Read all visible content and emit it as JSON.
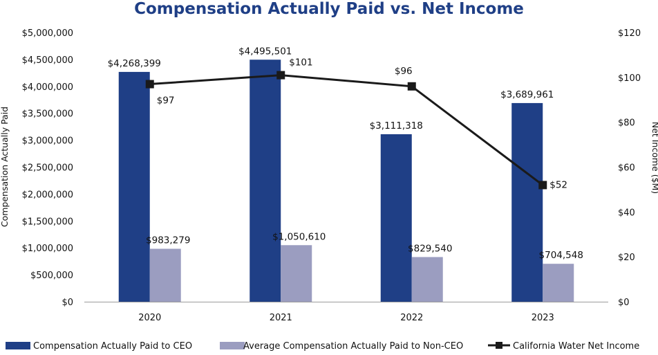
{
  "chart_data": {
    "type": "bar",
    "title": "Compensation Actually Paid vs. Net Income",
    "categories": [
      "2020",
      "2021",
      "2022",
      "2023"
    ],
    "ylabel": "Compensation Actually Paid",
    "y2label": "Net Income ($M)",
    "ylim": [
      0,
      5000000
    ],
    "y2lim": [
      0,
      120
    ],
    "yticks": [
      "$0",
      "$500,000",
      "$1,000,000",
      "$1,500,000",
      "$2,000,000",
      "$2,500,000",
      "$3,000,000",
      "$3,500,000",
      "$4,000,000",
      "$4,500,000",
      "$5,000,000"
    ],
    "y2ticks": [
      "$0",
      "$20",
      "$40",
      "$60",
      "$80",
      "$100",
      "$120"
    ],
    "series": [
      {
        "name": "Compensation Actually Paid to CEO",
        "kind": "bar",
        "axis": "left",
        "color": "#1F3F86",
        "values": [
          4268399,
          4495501,
          3111318,
          3689961
        ],
        "labels": [
          "$4,268,399",
          "$4,495,501",
          "$3,111,318",
          "$3,689,961"
        ]
      },
      {
        "name": "Average Compensation Actually Paid to Non-CEO",
        "kind": "bar",
        "axis": "left",
        "color": "#9B9DC0",
        "values": [
          983279,
          1050610,
          829540,
          704548
        ],
        "labels": [
          "$983,279",
          "$1,050,610",
          "$829,540",
          "$704,548"
        ]
      },
      {
        "name": "California Water Net Income",
        "kind": "line",
        "axis": "right",
        "color": "#1A1A1A",
        "values": [
          97,
          101,
          96,
          52
        ],
        "labels": [
          "$97",
          "$101",
          "$96",
          "$52"
        ]
      }
    ],
    "legend_position": "bottom"
  }
}
